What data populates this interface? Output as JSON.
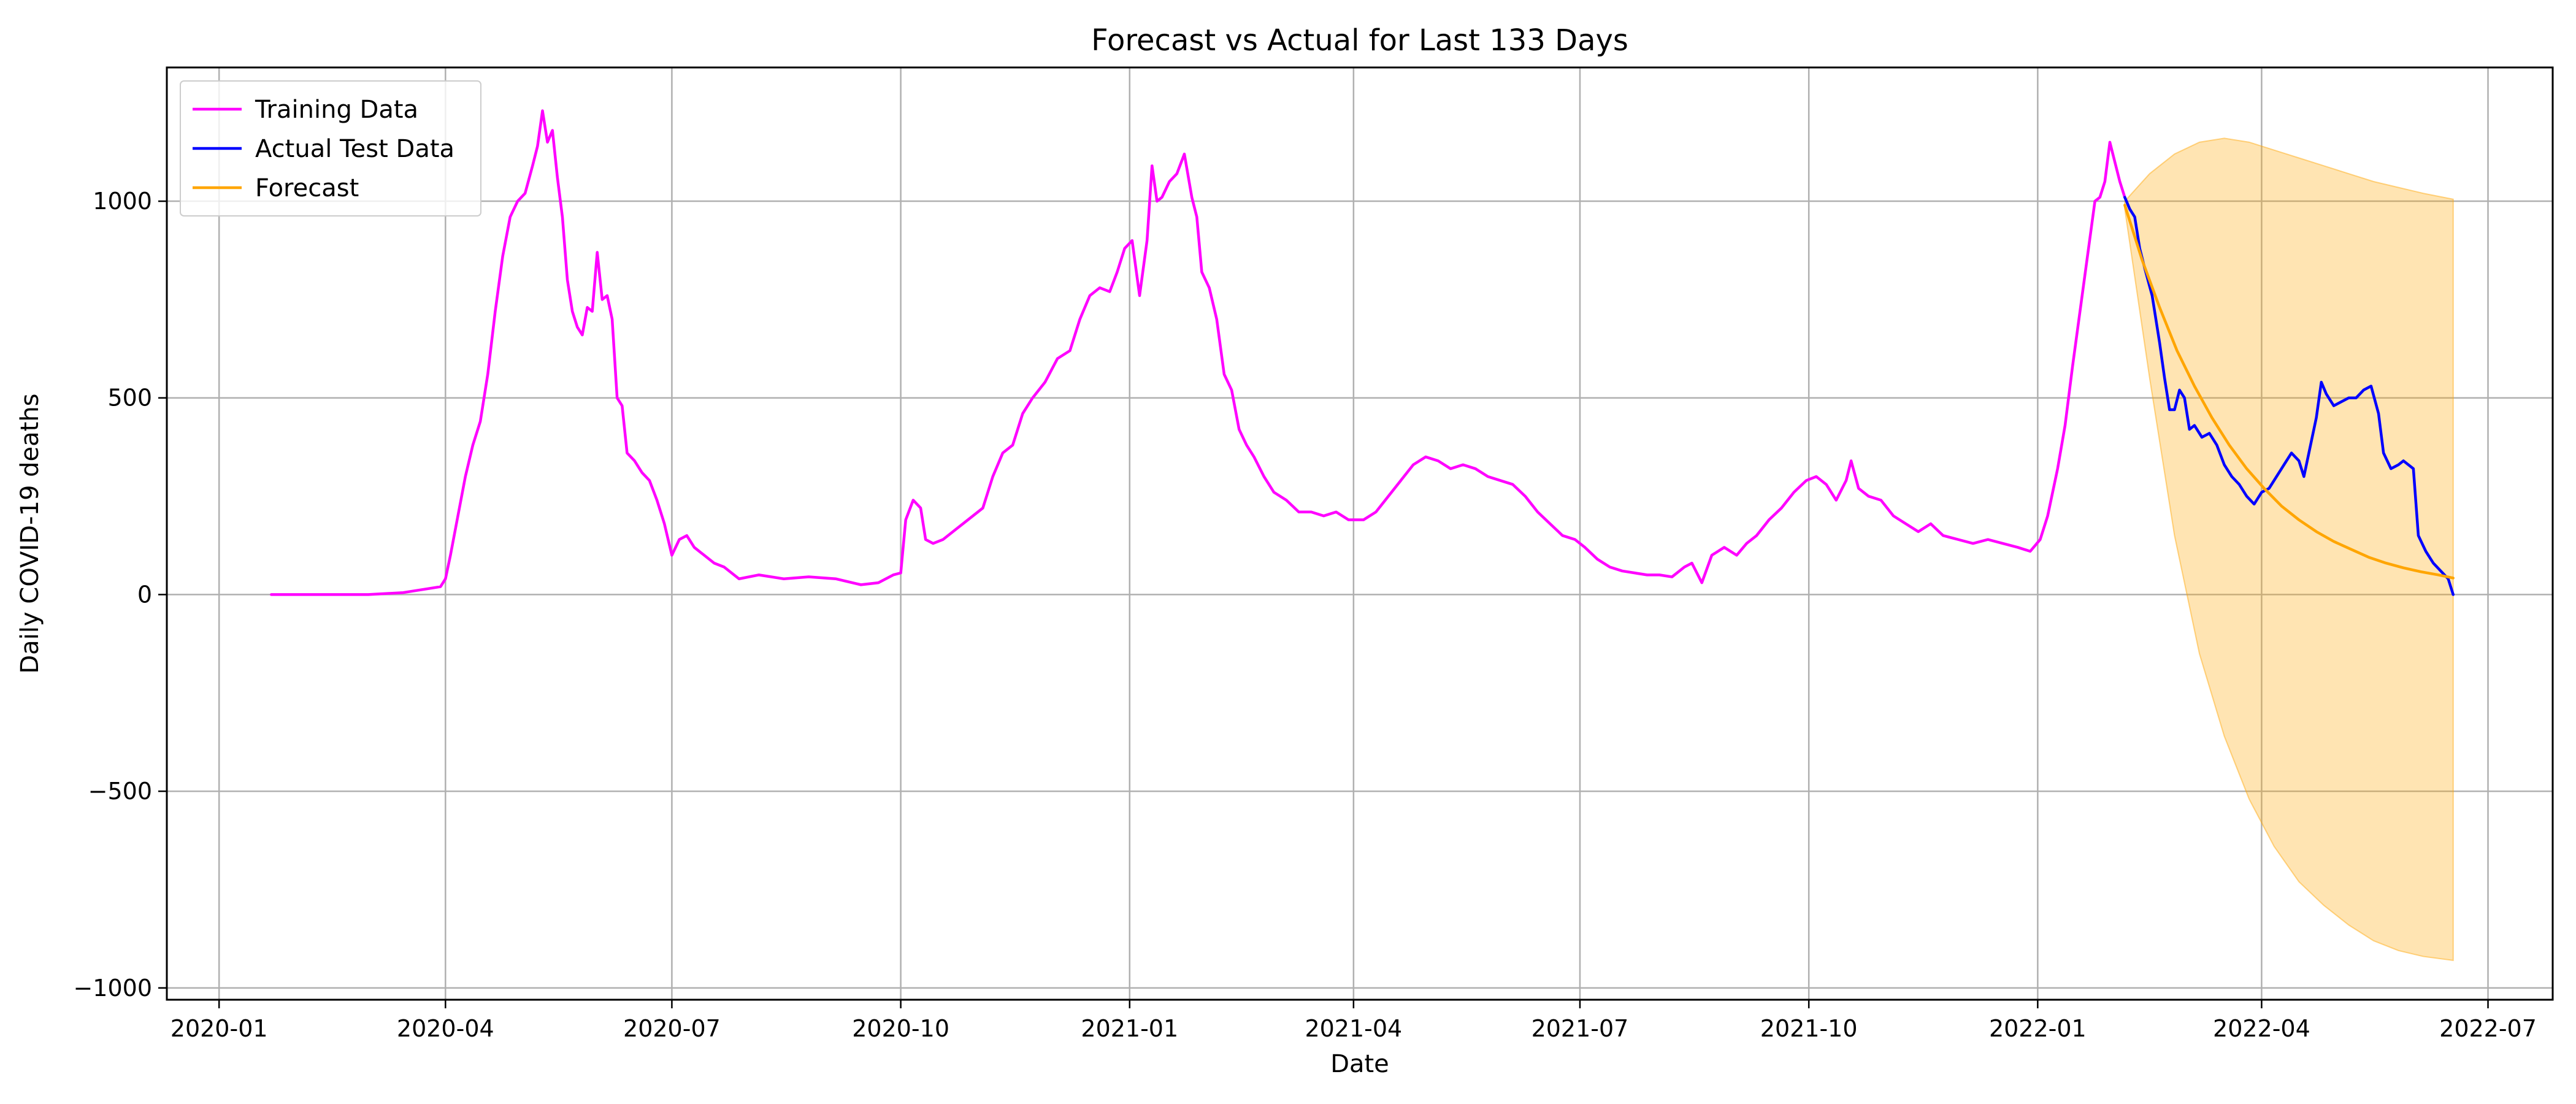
{
  "chart_data": {
    "type": "line",
    "title": "Forecast vs Actual for Last 133 Days",
    "xlabel": "Date",
    "ylabel": "Daily COVID-19 deaths",
    "xlim": [
      "2019-12-11",
      "2022-07-27"
    ],
    "ylim": [
      -1030,
      1340
    ],
    "grid": true,
    "legend_position": "top-left",
    "x_ticks": [
      {
        "date": "2020-01-01",
        "label": "2020-01"
      },
      {
        "date": "2020-04-01",
        "label": "2020-04"
      },
      {
        "date": "2020-07-01",
        "label": "2020-07"
      },
      {
        "date": "2020-10-01",
        "label": "2020-10"
      },
      {
        "date": "2021-01-01",
        "label": "2021-01"
      },
      {
        "date": "2021-04-01",
        "label": "2021-04"
      },
      {
        "date": "2021-07-01",
        "label": "2021-07"
      },
      {
        "date": "2021-10-01",
        "label": "2021-10"
      },
      {
        "date": "2022-01-01",
        "label": "2022-01"
      },
      {
        "date": "2022-04-01",
        "label": "2022-04"
      },
      {
        "date": "2022-07-01",
        "label": "2022-07"
      }
    ],
    "y_ticks": [
      {
        "value": 1000,
        "label": "1000"
      },
      {
        "value": 500,
        "label": "500"
      },
      {
        "value": 0,
        "label": "0"
      },
      {
        "value": -500,
        "label": "−500"
      },
      {
        "value": -1000,
        "label": "−1000"
      }
    ],
    "series": [
      {
        "name": "Training Data",
        "color": "#ff00ff",
        "points": [
          [
            "2020-01-22",
            0
          ],
          [
            "2020-02-15",
            0
          ],
          [
            "2020-03-01",
            0
          ],
          [
            "2020-03-15",
            5
          ],
          [
            "2020-03-25",
            15
          ],
          [
            "2020-03-30",
            20
          ],
          [
            "2020-04-01",
            40
          ],
          [
            "2020-04-03",
            100
          ],
          [
            "2020-04-06",
            200
          ],
          [
            "2020-04-09",
            300
          ],
          [
            "2020-04-12",
            380
          ],
          [
            "2020-04-15",
            440
          ],
          [
            "2020-04-18",
            560
          ],
          [
            "2020-04-21",
            720
          ],
          [
            "2020-04-24",
            860
          ],
          [
            "2020-04-27",
            960
          ],
          [
            "2020-04-30",
            1000
          ],
          [
            "2020-05-03",
            1020
          ],
          [
            "2020-05-06",
            1090
          ],
          [
            "2020-05-08",
            1140
          ],
          [
            "2020-05-10",
            1230
          ],
          [
            "2020-05-12",
            1150
          ],
          [
            "2020-05-14",
            1180
          ],
          [
            "2020-05-16",
            1060
          ],
          [
            "2020-05-18",
            960
          ],
          [
            "2020-05-20",
            800
          ],
          [
            "2020-05-22",
            720
          ],
          [
            "2020-05-24",
            680
          ],
          [
            "2020-05-26",
            660
          ],
          [
            "2020-05-28",
            730
          ],
          [
            "2020-05-30",
            720
          ],
          [
            "2020-06-01",
            870
          ],
          [
            "2020-06-03",
            750
          ],
          [
            "2020-06-05",
            760
          ],
          [
            "2020-06-07",
            700
          ],
          [
            "2020-06-09",
            500
          ],
          [
            "2020-06-11",
            480
          ],
          [
            "2020-06-13",
            360
          ],
          [
            "2020-06-16",
            340
          ],
          [
            "2020-06-19",
            310
          ],
          [
            "2020-06-22",
            290
          ],
          [
            "2020-06-25",
            240
          ],
          [
            "2020-06-28",
            180
          ],
          [
            "2020-07-01",
            100
          ],
          [
            "2020-07-04",
            140
          ],
          [
            "2020-07-07",
            150
          ],
          [
            "2020-07-10",
            120
          ],
          [
            "2020-07-14",
            100
          ],
          [
            "2020-07-18",
            80
          ],
          [
            "2020-07-22",
            70
          ],
          [
            "2020-07-28",
            40
          ],
          [
            "2020-08-05",
            50
          ],
          [
            "2020-08-15",
            40
          ],
          [
            "2020-08-25",
            45
          ],
          [
            "2020-09-05",
            40
          ],
          [
            "2020-09-15",
            25
          ],
          [
            "2020-09-22",
            30
          ],
          [
            "2020-09-28",
            50
          ],
          [
            "2020-10-01",
            55
          ],
          [
            "2020-10-03",
            190
          ],
          [
            "2020-10-06",
            240
          ],
          [
            "2020-10-09",
            220
          ],
          [
            "2020-10-11",
            140
          ],
          [
            "2020-10-14",
            130
          ],
          [
            "2020-10-18",
            140
          ],
          [
            "2020-10-22",
            160
          ],
          [
            "2020-10-28",
            190
          ],
          [
            "2020-11-03",
            220
          ],
          [
            "2020-11-07",
            300
          ],
          [
            "2020-11-11",
            360
          ],
          [
            "2020-11-15",
            380
          ],
          [
            "2020-11-19",
            460
          ],
          [
            "2020-11-23",
            500
          ],
          [
            "2020-11-28",
            540
          ],
          [
            "2020-12-03",
            600
          ],
          [
            "2020-12-08",
            620
          ],
          [
            "2020-12-12",
            700
          ],
          [
            "2020-12-16",
            760
          ],
          [
            "2020-12-20",
            780
          ],
          [
            "2020-12-24",
            770
          ],
          [
            "2020-12-27",
            820
          ],
          [
            "2020-12-30",
            880
          ],
          [
            "2021-01-02",
            900
          ],
          [
            "2021-01-05",
            760
          ],
          [
            "2021-01-08",
            900
          ],
          [
            "2021-01-10",
            1090
          ],
          [
            "2021-01-12",
            1000
          ],
          [
            "2021-01-14",
            1010
          ],
          [
            "2021-01-17",
            1050
          ],
          [
            "2021-01-20",
            1070
          ],
          [
            "2021-01-23",
            1120
          ],
          [
            "2021-01-26",
            1010
          ],
          [
            "2021-01-28",
            960
          ],
          [
            "2021-01-30",
            820
          ],
          [
            "2021-02-02",
            780
          ],
          [
            "2021-02-05",
            700
          ],
          [
            "2021-02-08",
            560
          ],
          [
            "2021-02-11",
            520
          ],
          [
            "2021-02-14",
            420
          ],
          [
            "2021-02-17",
            380
          ],
          [
            "2021-02-20",
            350
          ],
          [
            "2021-02-24",
            300
          ],
          [
            "2021-02-28",
            260
          ],
          [
            "2021-03-05",
            240
          ],
          [
            "2021-03-10",
            210
          ],
          [
            "2021-03-15",
            210
          ],
          [
            "2021-03-20",
            200
          ],
          [
            "2021-03-25",
            210
          ],
          [
            "2021-03-30",
            190
          ],
          [
            "2021-04-05",
            190
          ],
          [
            "2021-04-10",
            210
          ],
          [
            "2021-04-15",
            250
          ],
          [
            "2021-04-20",
            290
          ],
          [
            "2021-04-25",
            330
          ],
          [
            "2021-04-30",
            350
          ],
          [
            "2021-05-05",
            340
          ],
          [
            "2021-05-10",
            320
          ],
          [
            "2021-05-15",
            330
          ],
          [
            "2021-05-20",
            320
          ],
          [
            "2021-05-25",
            300
          ],
          [
            "2021-05-30",
            290
          ],
          [
            "2021-06-04",
            280
          ],
          [
            "2021-06-09",
            250
          ],
          [
            "2021-06-14",
            210
          ],
          [
            "2021-06-19",
            180
          ],
          [
            "2021-06-24",
            150
          ],
          [
            "2021-06-29",
            140
          ],
          [
            "2021-07-03",
            120
          ],
          [
            "2021-07-08",
            90
          ],
          [
            "2021-07-13",
            70
          ],
          [
            "2021-07-18",
            60
          ],
          [
            "2021-07-23",
            55
          ],
          [
            "2021-07-28",
            50
          ],
          [
            "2021-08-02",
            50
          ],
          [
            "2021-08-07",
            45
          ],
          [
            "2021-08-12",
            70
          ],
          [
            "2021-08-15",
            80
          ],
          [
            "2021-08-19",
            30
          ],
          [
            "2021-08-23",
            100
          ],
          [
            "2021-08-28",
            120
          ],
          [
            "2021-09-02",
            100
          ],
          [
            "2021-09-06",
            130
          ],
          [
            "2021-09-10",
            150
          ],
          [
            "2021-09-15",
            190
          ],
          [
            "2021-09-20",
            220
          ],
          [
            "2021-09-25",
            260
          ],
          [
            "2021-09-30",
            290
          ],
          [
            "2021-10-04",
            300
          ],
          [
            "2021-10-08",
            280
          ],
          [
            "2021-10-12",
            240
          ],
          [
            "2021-10-16",
            290
          ],
          [
            "2021-10-18",
            340
          ],
          [
            "2021-10-21",
            270
          ],
          [
            "2021-10-25",
            250
          ],
          [
            "2021-10-30",
            240
          ],
          [
            "2021-11-04",
            200
          ],
          [
            "2021-11-09",
            180
          ],
          [
            "2021-11-14",
            160
          ],
          [
            "2021-11-19",
            180
          ],
          [
            "2021-11-24",
            150
          ],
          [
            "2021-11-30",
            140
          ],
          [
            "2021-12-06",
            130
          ],
          [
            "2021-12-12",
            140
          ],
          [
            "2021-12-18",
            130
          ],
          [
            "2021-12-24",
            120
          ],
          [
            "2021-12-29",
            110
          ],
          [
            "2022-01-02",
            140
          ],
          [
            "2022-01-05",
            200
          ],
          [
            "2022-01-09",
            320
          ],
          [
            "2022-01-12",
            430
          ],
          [
            "2022-01-15",
            580
          ],
          [
            "2022-01-18",
            720
          ],
          [
            "2022-01-21",
            860
          ],
          [
            "2022-01-24",
            1000
          ],
          [
            "2022-01-26",
            1010
          ],
          [
            "2022-01-28",
            1050
          ],
          [
            "2022-01-30",
            1150
          ],
          [
            "2022-02-01",
            1100
          ],
          [
            "2022-02-03",
            1050
          ],
          [
            "2022-02-05",
            1010
          ]
        ]
      },
      {
        "name": "Actual Test Data",
        "color": "#0000ff",
        "points": [
          [
            "2022-02-05",
            1010
          ],
          [
            "2022-02-07",
            980
          ],
          [
            "2022-02-09",
            960
          ],
          [
            "2022-02-11",
            880
          ],
          [
            "2022-02-13",
            830
          ],
          [
            "2022-02-16",
            760
          ],
          [
            "2022-02-19",
            640
          ],
          [
            "2022-02-21",
            550
          ],
          [
            "2022-02-23",
            470
          ],
          [
            "2022-02-25",
            470
          ],
          [
            "2022-02-27",
            520
          ],
          [
            "2022-03-01",
            500
          ],
          [
            "2022-03-03",
            420
          ],
          [
            "2022-03-05",
            430
          ],
          [
            "2022-03-08",
            400
          ],
          [
            "2022-03-11",
            410
          ],
          [
            "2022-03-14",
            380
          ],
          [
            "2022-03-17",
            330
          ],
          [
            "2022-03-20",
            300
          ],
          [
            "2022-03-23",
            280
          ],
          [
            "2022-03-26",
            250
          ],
          [
            "2022-03-29",
            230
          ],
          [
            "2022-04-01",
            260
          ],
          [
            "2022-04-04",
            270
          ],
          [
            "2022-04-07",
            300
          ],
          [
            "2022-04-10",
            330
          ],
          [
            "2022-04-13",
            360
          ],
          [
            "2022-04-16",
            340
          ],
          [
            "2022-04-18",
            300
          ],
          [
            "2022-04-20",
            360
          ],
          [
            "2022-04-23",
            450
          ],
          [
            "2022-04-25",
            540
          ],
          [
            "2022-04-27",
            510
          ],
          [
            "2022-04-30",
            480
          ],
          [
            "2022-05-03",
            490
          ],
          [
            "2022-05-06",
            500
          ],
          [
            "2022-05-09",
            500
          ],
          [
            "2022-05-12",
            520
          ],
          [
            "2022-05-15",
            530
          ],
          [
            "2022-05-18",
            460
          ],
          [
            "2022-05-20",
            360
          ],
          [
            "2022-05-23",
            320
          ],
          [
            "2022-05-26",
            330
          ],
          [
            "2022-05-28",
            340
          ],
          [
            "2022-06-01",
            320
          ],
          [
            "2022-06-03",
            150
          ],
          [
            "2022-06-06",
            110
          ],
          [
            "2022-06-09",
            80
          ],
          [
            "2022-06-12",
            60
          ],
          [
            "2022-06-15",
            40
          ],
          [
            "2022-06-17",
            0
          ]
        ]
      },
      {
        "name": "Forecast",
        "color": "#ffa500",
        "points": [
          [
            "2022-02-05",
            990
          ],
          [
            "2022-02-12",
            850
          ],
          [
            "2022-02-19",
            730
          ],
          [
            "2022-02-26",
            620
          ],
          [
            "2022-03-05",
            530
          ],
          [
            "2022-03-12",
            450
          ],
          [
            "2022-03-19",
            380
          ],
          [
            "2022-03-26",
            320
          ],
          [
            "2022-04-02",
            270
          ],
          [
            "2022-04-09",
            225
          ],
          [
            "2022-04-16",
            190
          ],
          [
            "2022-04-23",
            160
          ],
          [
            "2022-04-30",
            135
          ],
          [
            "2022-05-07",
            115
          ],
          [
            "2022-05-14",
            95
          ],
          [
            "2022-05-21",
            80
          ],
          [
            "2022-05-28",
            68
          ],
          [
            "2022-06-04",
            58
          ],
          [
            "2022-06-11",
            50
          ],
          [
            "2022-06-17",
            42
          ]
        ]
      }
    ],
    "confidence_band": {
      "color": "#ffa500",
      "opacity": 0.3,
      "points": [
        [
          "2022-02-05",
          1000,
          980
        ],
        [
          "2022-02-15",
          1070,
          550
        ],
        [
          "2022-02-25",
          1120,
          150
        ],
        [
          "2022-03-07",
          1150,
          -150
        ],
        [
          "2022-03-17",
          1160,
          -360
        ],
        [
          "2022-03-27",
          1150,
          -520
        ],
        [
          "2022-04-06",
          1130,
          -640
        ],
        [
          "2022-04-16",
          1110,
          -730
        ],
        [
          "2022-04-26",
          1090,
          -790
        ],
        [
          "2022-05-06",
          1070,
          -840
        ],
        [
          "2022-05-16",
          1050,
          -880
        ],
        [
          "2022-05-26",
          1035,
          -905
        ],
        [
          "2022-06-05",
          1020,
          -920
        ],
        [
          "2022-06-17",
          1005,
          -930
        ]
      ]
    }
  }
}
